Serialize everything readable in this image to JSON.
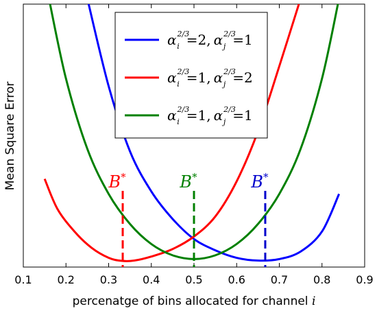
{
  "chart_data": {
    "type": "line",
    "xlabel": "percenatge of bins allocated for channel i",
    "ylabel": "Mean Square Error",
    "xlim": [
      0.1,
      0.9
    ],
    "ylim": [
      0,
      1
    ],
    "xticks": [
      "0.1",
      "0.2",
      "0.3",
      "0.4",
      "0.5",
      "0.6",
      "0.7",
      "0.8",
      "0.9"
    ],
    "legend_position": "top-center",
    "series": [
      {
        "name": "α_i^(2/3)=2, α_j^(2/3)=1",
        "legend_parts": {
          "lhs_i": "α",
          "sub_i": "i",
          "sup": "2/3",
          "val_i": "=2,",
          "lhs_j": "α",
          "sub_j": "j",
          "val_j": "=1"
        },
        "color": "#0000ff",
        "x": [
          0.25,
          0.3,
          0.35,
          0.4,
          0.45,
          0.5,
          0.55,
          0.6,
          0.65,
          0.7,
          0.75,
          0.8,
          0.84
        ],
        "y": [
          1.05,
          0.7,
          0.44,
          0.28,
          0.17,
          0.09,
          0.045,
          0.015,
          0.004,
          0.01,
          0.04,
          0.12,
          0.27
        ]
      },
      {
        "name": "α_i^(2/3)=1, α_j^(2/3)=2",
        "legend_parts": {
          "lhs_i": "α",
          "sub_i": "i",
          "sup": "2/3",
          "val_i": "=1,",
          "lhs_j": "α",
          "sub_j": "j",
          "val_j": "=2"
        },
        "color": "#ff0000",
        "x": [
          0.15,
          0.18,
          0.22,
          0.26,
          0.3,
          0.33,
          0.36,
          0.4,
          0.45,
          0.5,
          0.55,
          0.6,
          0.65,
          0.7,
          0.75
        ],
        "y": [
          0.33,
          0.21,
          0.12,
          0.055,
          0.015,
          0.003,
          0.004,
          0.02,
          0.05,
          0.1,
          0.18,
          0.32,
          0.52,
          0.78,
          1.05
        ]
      },
      {
        "name": "α_i^(2/3)=1, α_j^(2/3)=1",
        "legend_parts": {
          "lhs_i": "α",
          "sub_i": "i",
          "sup": "2/3",
          "val_i": "=1,",
          "lhs_j": "α",
          "sub_j": "j",
          "val_j": "=1"
        },
        "color": "#008000",
        "x": [
          0.16,
          0.2,
          0.25,
          0.3,
          0.35,
          0.4,
          0.45,
          0.5,
          0.55,
          0.6,
          0.65,
          0.7,
          0.75,
          0.8,
          0.84
        ],
        "y": [
          1.05,
          0.73,
          0.45,
          0.27,
          0.15,
          0.07,
          0.025,
          0.01,
          0.025,
          0.07,
          0.15,
          0.27,
          0.45,
          0.73,
          1.05
        ]
      }
    ],
    "annotations": [
      {
        "label": "B",
        "sup": "*",
        "x": 0.333,
        "y": 0.25,
        "color": "#ff0000"
      },
      {
        "label": "B",
        "sup": "*",
        "x": 0.5,
        "y": 0.25,
        "color": "#008000"
      },
      {
        "label": "B",
        "sup": "*",
        "x": 0.667,
        "y": 0.25,
        "color": "#0000cc"
      }
    ]
  }
}
